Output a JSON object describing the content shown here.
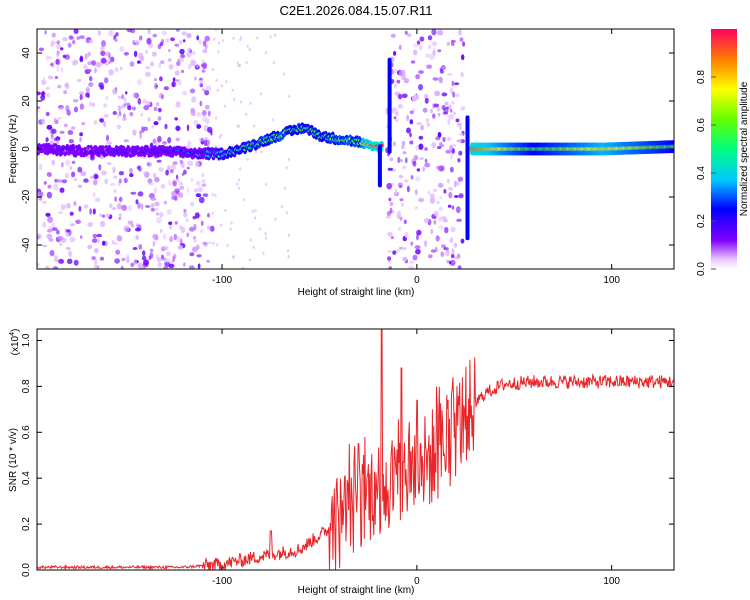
{
  "title": "C2E1.2026.084.15.07.R11",
  "chart_data": [
    {
      "type": "heatmap",
      "name": "spectrogram",
      "xlabel": "Height of straight line (km)",
      "ylabel": "Frequency (Hz)",
      "xlim": [
        -195,
        132
      ],
      "ylim": [
        -50,
        50
      ],
      "xticks": [
        -100,
        0,
        100
      ],
      "xtick_labels": [
        "-100",
        "0",
        "100"
      ],
      "yticks": [
        -40,
        -20,
        0,
        20,
        40
      ],
      "ytick_labels": [
        "-40",
        "-20",
        "0",
        "20",
        "40"
      ],
      "colorbar": {
        "label": "Normalized spectral amplitude",
        "range": [
          0.0,
          1.0
        ],
        "ticks": [
          0.0,
          0.2,
          0.4,
          0.6,
          0.8
        ],
        "tick_labels": [
          "0.0",
          "0.2",
          "0.4",
          "0.6",
          "0.8"
        ]
      },
      "noise_regions": [
        {
          "x_from": -195,
          "x_to": -105,
          "density": "high"
        },
        {
          "x_from": -15,
          "x_to": 24,
          "density": "high"
        }
      ],
      "ridge": [
        {
          "x": -195,
          "freq": 0,
          "amp": 0.15
        },
        {
          "x": -160,
          "freq": -1,
          "amp": 0.15
        },
        {
          "x": -130,
          "freq": -1,
          "amp": 0.2
        },
        {
          "x": -110,
          "freq": -2,
          "amp": 0.3
        },
        {
          "x": -100,
          "freq": -2,
          "amp": 0.45
        },
        {
          "x": -90,
          "freq": 0,
          "amp": 0.5
        },
        {
          "x": -80,
          "freq": 3,
          "amp": 0.55
        },
        {
          "x": -70,
          "freq": 6,
          "amp": 0.6
        },
        {
          "x": -58,
          "freq": 9,
          "amp": 0.55
        },
        {
          "x": -48,
          "freq": 5,
          "amp": 0.55
        },
        {
          "x": -38,
          "freq": 4,
          "amp": 0.6
        },
        {
          "x": -30,
          "freq": 3,
          "amp": 0.55
        },
        {
          "x": -24,
          "freq": 1,
          "amp": 0.95
        },
        {
          "x": 30,
          "freq": 0,
          "amp": 0.9
        },
        {
          "x": 60,
          "freq": 0,
          "amp": 0.55
        },
        {
          "x": 96,
          "freq": 0,
          "amp": 0.8
        },
        {
          "x": 132,
          "freq": 1,
          "amp": 0.55
        }
      ],
      "spikes": [
        {
          "x": -19,
          "freq_range": [
            -16,
            2
          ]
        },
        {
          "x": -14,
          "freq_range": [
            -2,
            38
          ]
        },
        {
          "x": 26,
          "freq_range": [
            -38,
            14
          ]
        }
      ]
    },
    {
      "type": "line",
      "name": "snr",
      "xlabel": "Height of straight line (km)",
      "ylabel": "SNR (10 * v/v)",
      "multiplier_label": "(x10",
      "multiplier_exponent": "4",
      "xlim": [
        -195,
        132
      ],
      "ylim": [
        0.0,
        1.05
      ],
      "xticks": [
        -100,
        0,
        100
      ],
      "xtick_labels": [
        "-100",
        "0",
        "100"
      ],
      "yticks": [
        0.0,
        0.2,
        0.4,
        0.6,
        0.8,
        1.0
      ],
      "ytick_labels": [
        "0.0",
        "0.2",
        "0.4",
        "0.6",
        "0.8",
        "1.0"
      ],
      "series": [
        {
          "name": "SNR",
          "color": "#e8262a",
          "trend": [
            [
              -195,
              0.012
            ],
            [
              -120,
              0.012
            ],
            [
              -100,
              0.025
            ],
            [
              -80,
              0.06
            ],
            [
              -60,
              0.09
            ],
            [
              -45,
              0.18
            ],
            [
              -35,
              0.25
            ],
            [
              -25,
              0.33
            ],
            [
              -15,
              0.38
            ],
            [
              -5,
              0.42
            ],
            [
              5,
              0.47
            ],
            [
              15,
              0.55
            ],
            [
              25,
              0.68
            ],
            [
              35,
              0.77
            ],
            [
              45,
              0.81
            ],
            [
              60,
              0.82
            ],
            [
              132,
              0.82
            ]
          ],
          "peaks": [
            {
              "x": -75,
              "value": 0.17
            },
            {
              "x": -30,
              "value": 0.55
            },
            {
              "x": -18,
              "value": 1.05
            },
            {
              "x": -8,
              "value": 0.88
            },
            {
              "x": 0,
              "value": 0.74
            }
          ]
        }
      ]
    }
  ]
}
